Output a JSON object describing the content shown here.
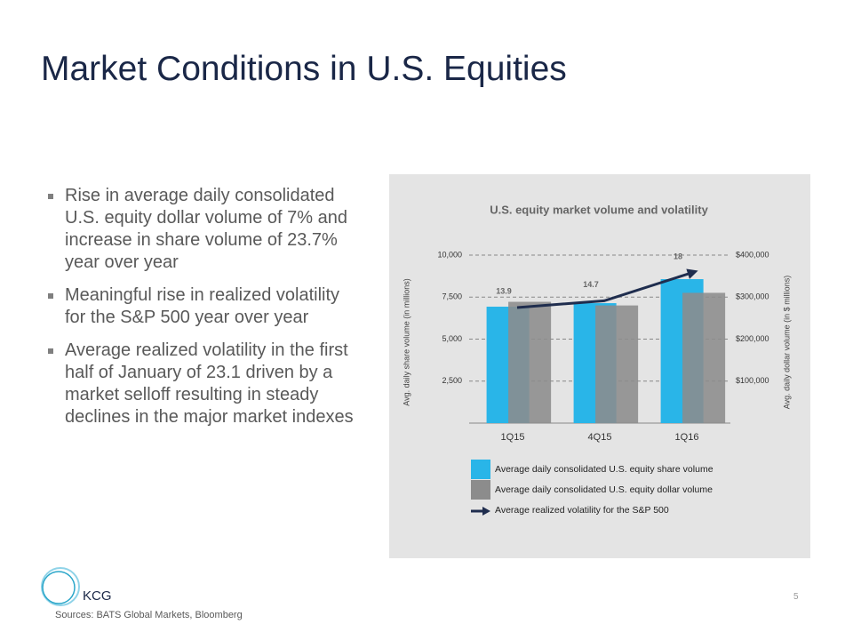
{
  "title": "Market Conditions in U.S. Equities",
  "bullets": [
    "Rise in average daily consolidated U.S. equity dollar volume of 7% and increase in share volume of 23.7% year over year",
    "Meaningful rise in realized volatility for the S&P 500 year over year",
    "Average realized volatility in the first half of January of 23.1 driven by a market selloff resulting in steady declines in the major market indexes"
  ],
  "footer": {
    "logo": "KCG",
    "sources": "Sources: BATS Global Markets, Bloomberg",
    "page": "5"
  },
  "chart_data": {
    "type": "bar",
    "title": "U.S. equity market volume and volatility",
    "ylabel": "Avg. daily share volume (in millions)",
    "y2label": "Avg. daily dollar volume (in $ millions)",
    "categories": [
      "1Q15",
      "4Q15",
      "1Q16"
    ],
    "series": [
      {
        "name": "Average daily consolidated U.S. equity share volume",
        "color": "#29b5e8",
        "values": [
          6930,
          7140,
          8570
        ]
      },
      {
        "name": "Average daily consolidated U.S. equity dollar volume",
        "color": "#8c8c8c",
        "axis": "y2",
        "values": [
          288800,
          280200,
          310200
        ]
      },
      {
        "name": "Average realized volatility for the S&P 500",
        "type": "line",
        "color": "#1f2d4e",
        "values": [
          13.9,
          14.7,
          18.0
        ]
      }
    ],
    "ylim": [
      0,
      10000
    ],
    "yticks": [
      {
        "value": 2500,
        "label": "2,500"
      },
      {
        "value": 5000,
        "label": "5,000"
      },
      {
        "value": 7500,
        "label": "7,500"
      },
      {
        "value": 10000,
        "label": "10,000"
      }
    ],
    "y2lim": [
      0,
      400000
    ],
    "y2ticks": [
      {
        "value": 100000,
        "label": "$100,000"
      },
      {
        "value": 200000,
        "label": "$200,000"
      },
      {
        "value": 300000,
        "label": "$300,000"
      },
      {
        "value": 400000,
        "label": "$400,000"
      }
    ],
    "grid": true
  }
}
